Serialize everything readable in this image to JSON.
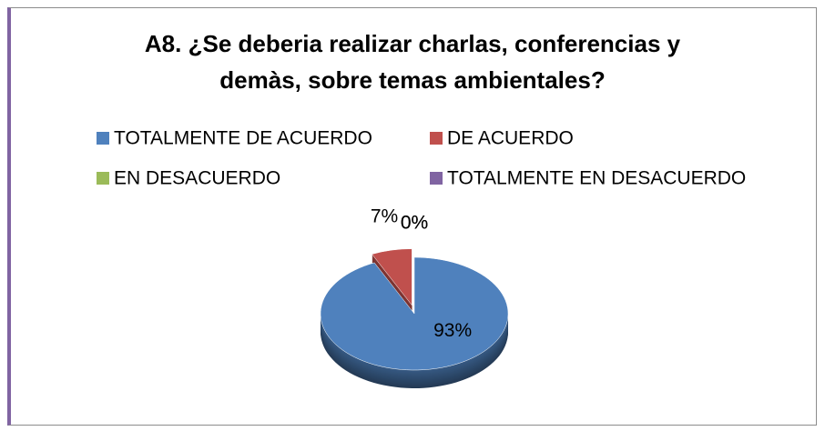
{
  "chart_data": {
    "type": "pie",
    "title": "A8. ¿Se deberia realizar charlas, conferencias y demàs, sobre temas ambientales?",
    "categories": [
      "TOTALMENTE DE ACUERDO",
      "DE ACUERDO",
      "EN DESACUERDO",
      "TOTALMENTE EN DESACUERDO"
    ],
    "values": [
      93,
      7,
      0,
      0
    ],
    "value_labels": [
      "93%",
      "7%",
      "0%",
      "0%"
    ],
    "colors": [
      "#4f81bd",
      "#c0504d",
      "#9bbb59",
      "#8064a2"
    ],
    "legend": "top"
  }
}
